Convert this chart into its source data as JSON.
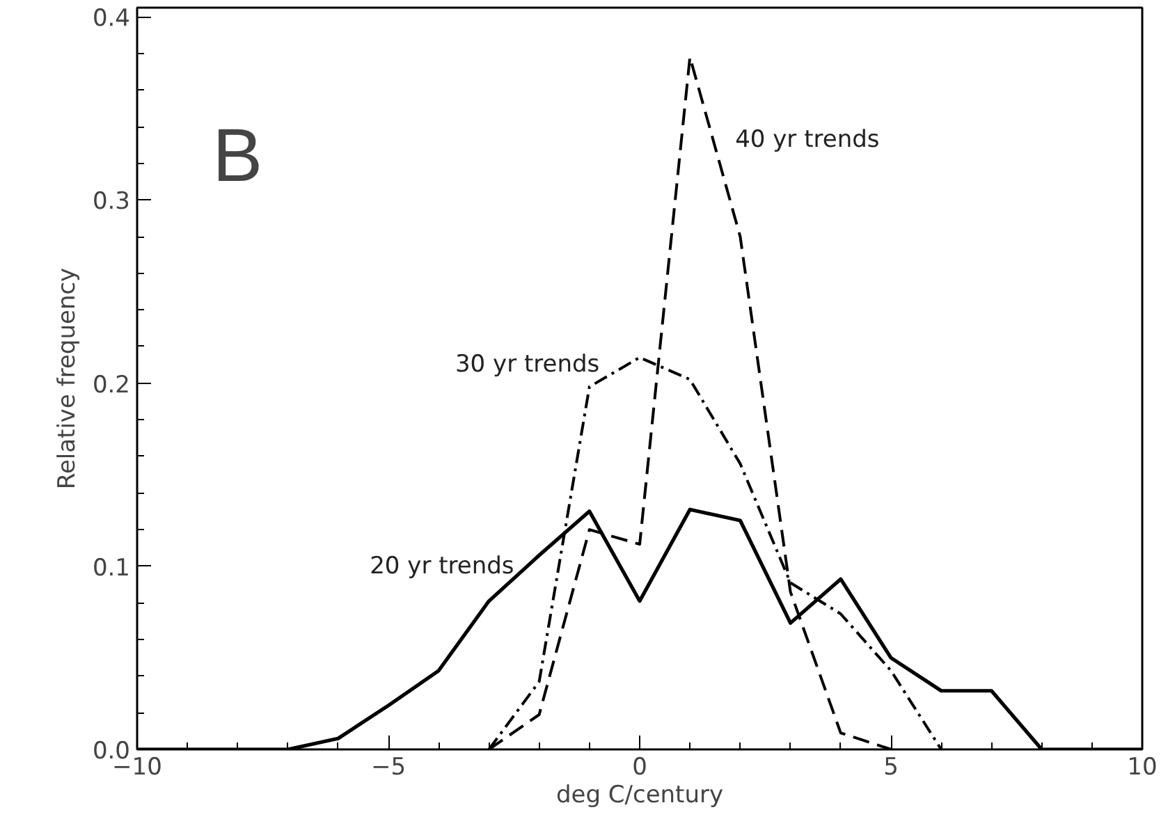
{
  "chart_data": {
    "type": "line",
    "xlabel": "deg C/century",
    "ylabel": "Relative frequency",
    "x": [
      -10,
      -9,
      -8,
      -7,
      -6,
      -5,
      -4,
      -3,
      -2,
      -1,
      0,
      1,
      2,
      3,
      4,
      5,
      6,
      7,
      8,
      9,
      10
    ],
    "series": [
      {
        "name": "20 yr trends",
        "color": "#000000",
        "line_style": "solid",
        "values": [
          0,
          0,
          0,
          0,
          0.006,
          0.024,
          0.043,
          0.081,
          0.106,
          0.13,
          0.081,
          0.131,
          0.125,
          0.069,
          0.093,
          0.05,
          0.032,
          0.032,
          0,
          0,
          0
        ]
      },
      {
        "name": "30 yr trends",
        "color": "#000000",
        "line_style": "dashdot",
        "values": [
          null,
          null,
          null,
          null,
          null,
          null,
          null,
          0,
          0.037,
          0.198,
          0.214,
          0.202,
          0.156,
          0.091,
          0.074,
          0.043,
          0,
          null,
          null,
          null,
          null
        ]
      },
      {
        "name": "40 yr trends",
        "color": "#000000",
        "line_style": "dashed",
        "values": [
          null,
          null,
          null,
          null,
          null,
          null,
          null,
          0,
          0.019,
          0.12,
          0.112,
          0.378,
          0.28,
          0.086,
          0.009,
          0,
          null,
          null,
          null,
          null,
          null
        ]
      }
    ],
    "xlim": [
      -10,
      10
    ],
    "ylim": [
      0,
      0.405
    ],
    "xticks": [
      -10,
      -5,
      0,
      5,
      10
    ],
    "yticks": [
      {
        "value": 0,
        "label": "0.0"
      },
      {
        "value": 0.1,
        "label": "0.1"
      },
      {
        "value": 0.2,
        "label": "0.2"
      },
      {
        "value": 0.3,
        "label": "0.3"
      },
      {
        "value": 0.4,
        "label": "0.4"
      }
    ],
    "annotations": [
      "B"
    ],
    "grid": false,
    "marker": "none"
  }
}
